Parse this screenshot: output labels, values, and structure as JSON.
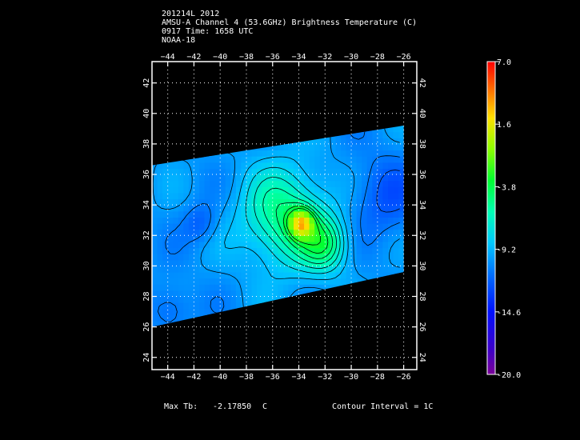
{
  "header": {
    "line1": "201214L 2012",
    "line2": "AMSU-A Channel 4 (53.6GHz) Brightness Temperature (C)",
    "line3": "0917 Time: 1658 UTC",
    "line4": "NOAA-18"
  },
  "footer": {
    "max_tb_label": "Max Tb:",
    "max_tb_value": "-2.17850",
    "max_tb_unit": "C",
    "contour_interval": "Contour Interval = 1C"
  },
  "colorbar": {
    "ticks": [
      "7.0",
      "1.6",
      "-3.8",
      "-9.2",
      "-14.6",
      "-20.0"
    ],
    "values": [
      7.0,
      1.6,
      -3.8,
      -9.2,
      -14.6,
      -20.0
    ]
  },
  "chart_data": {
    "type": "heatmap",
    "xlabel": "",
    "ylabel": "",
    "x_ticks": [
      "-44",
      "-42",
      "-40",
      "-38",
      "-36",
      "-34",
      "-32",
      "-30",
      "-28",
      "-26"
    ],
    "y_ticks": [
      "24",
      "26",
      "28",
      "30",
      "32",
      "34",
      "36",
      "38",
      "40",
      "42"
    ],
    "xlim": [
      -45.2,
      -25.0
    ],
    "ylim": [
      23.2,
      43.4
    ],
    "grid": true,
    "swath": {
      "lon_west": -45.2,
      "lon_east": -26.0,
      "north_west": 36.6,
      "north_east": 39.2,
      "south_west": 26.0,
      "south_east": 29.6
    },
    "max_tb": -2.1785,
    "contour_interval": 1,
    "color_range": [
      -20.0,
      7.0
    ],
    "background_tb": -10.2,
    "features": [
      {
        "name": "warm core",
        "lon": -35.0,
        "lat": 33.2,
        "tb": -4.8,
        "radius": 3.2
      },
      {
        "name": "warm core peak",
        "lon": -33.8,
        "lat": 32.8,
        "tb": -2.2,
        "radius": 0.9
      },
      {
        "name": "secondary warm area",
        "lon": -32.0,
        "lat": 31.4,
        "tb": -5.6,
        "radius": 1.8
      },
      {
        "name": "cold pocket west",
        "lon": -41.5,
        "lat": 32.8,
        "tb": -12.0,
        "radius": 1.3
      },
      {
        "name": "cold area east",
        "lon": -27.5,
        "lat": 34.5,
        "tb": -12.2,
        "radius": 2.8
      },
      {
        "name": "cold area south-west",
        "lon": -43.8,
        "lat": 27.2,
        "tb": -12.0,
        "radius": 1.6
      }
    ]
  }
}
